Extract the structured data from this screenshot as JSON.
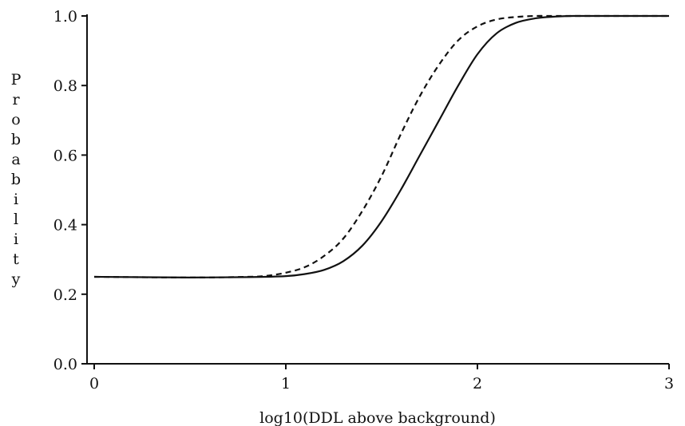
{
  "chart_data": {
    "type": "line",
    "title": "",
    "xlabel": "log10(DDL above background)",
    "ylabel": "Probability",
    "xlim": [
      0,
      3
    ],
    "ylim": [
      0,
      1
    ],
    "x_ticks": [
      "0",
      "1",
      "2",
      "3"
    ],
    "y_ticks": [
      "0.0",
      "0.2",
      "0.4",
      "0.6",
      "0.8",
      "1.0"
    ],
    "grid": false,
    "legend": "none",
    "series": [
      {
        "style": "solid",
        "color": "#111111",
        "x": [
          0,
          0.5,
          0.8,
          1.0,
          1.1,
          1.2,
          1.3,
          1.4,
          1.5,
          1.6,
          1.7,
          1.8,
          1.9,
          2.0,
          2.1,
          2.2,
          2.3,
          2.4,
          2.5,
          2.7,
          3.0
        ],
        "y": [
          0.25,
          0.248,
          0.249,
          0.252,
          0.258,
          0.27,
          0.295,
          0.34,
          0.41,
          0.5,
          0.6,
          0.7,
          0.8,
          0.89,
          0.95,
          0.98,
          0.993,
          0.998,
          1.0,
          1.0,
          1.0
        ]
      },
      {
        "style": "dashed",
        "color": "#111111",
        "x": [
          0,
          0.5,
          0.8,
          0.9,
          1.0,
          1.1,
          1.2,
          1.3,
          1.4,
          1.5,
          1.6,
          1.7,
          1.8,
          1.9,
          2.0,
          2.1,
          2.2,
          2.3,
          2.4,
          2.5,
          3.0
        ],
        "y": [
          0.25,
          0.248,
          0.25,
          0.253,
          0.262,
          0.278,
          0.31,
          0.36,
          0.44,
          0.54,
          0.66,
          0.77,
          0.86,
          0.93,
          0.97,
          0.99,
          0.997,
          1.0,
          1.0,
          1.0,
          1.0
        ]
      }
    ]
  }
}
